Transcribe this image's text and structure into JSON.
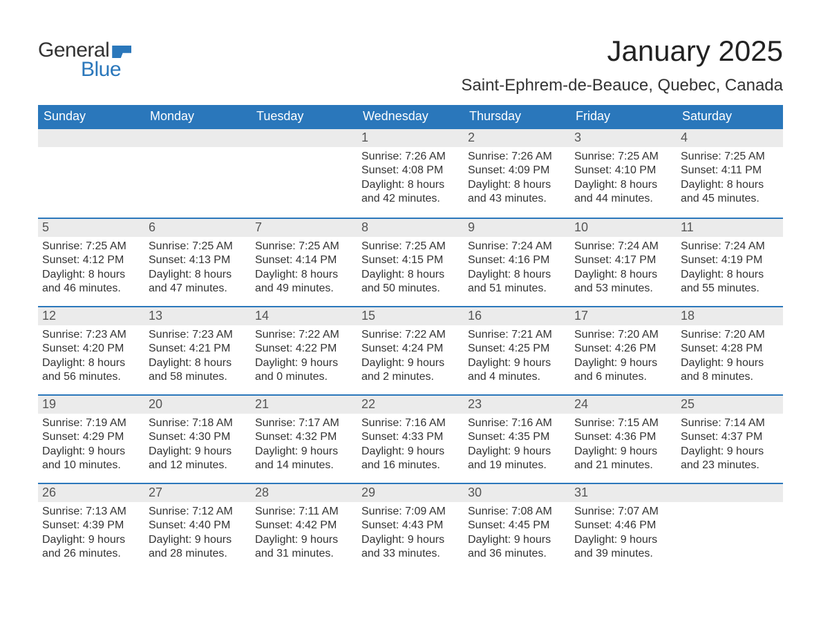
{
  "logo": {
    "general": "General",
    "blue": "Blue"
  },
  "title": "January 2025",
  "location": "Saint-Ephrem-de-Beauce, Quebec, Canada",
  "colors": {
    "header_bg": "#2a77bb",
    "header_text": "#ffffff",
    "daynum_bg": "#ebebeb",
    "daynum_text": "#555555",
    "body_text": "#333333",
    "row_border": "#2a77bb",
    "page_bg": "#ffffff"
  },
  "days_of_week": [
    "Sunday",
    "Monday",
    "Tuesday",
    "Wednesday",
    "Thursday",
    "Friday",
    "Saturday"
  ],
  "weeks": [
    [
      {
        "n": "",
        "sunrise": "",
        "sunset": "",
        "daylight": ""
      },
      {
        "n": "",
        "sunrise": "",
        "sunset": "",
        "daylight": ""
      },
      {
        "n": "",
        "sunrise": "",
        "sunset": "",
        "daylight": ""
      },
      {
        "n": "1",
        "sunrise": "Sunrise: 7:26 AM",
        "sunset": "Sunset: 4:08 PM",
        "daylight": "Daylight: 8 hours and 42 minutes."
      },
      {
        "n": "2",
        "sunrise": "Sunrise: 7:26 AM",
        "sunset": "Sunset: 4:09 PM",
        "daylight": "Daylight: 8 hours and 43 minutes."
      },
      {
        "n": "3",
        "sunrise": "Sunrise: 7:25 AM",
        "sunset": "Sunset: 4:10 PM",
        "daylight": "Daylight: 8 hours and 44 minutes."
      },
      {
        "n": "4",
        "sunrise": "Sunrise: 7:25 AM",
        "sunset": "Sunset: 4:11 PM",
        "daylight": "Daylight: 8 hours and 45 minutes."
      }
    ],
    [
      {
        "n": "5",
        "sunrise": "Sunrise: 7:25 AM",
        "sunset": "Sunset: 4:12 PM",
        "daylight": "Daylight: 8 hours and 46 minutes."
      },
      {
        "n": "6",
        "sunrise": "Sunrise: 7:25 AM",
        "sunset": "Sunset: 4:13 PM",
        "daylight": "Daylight: 8 hours and 47 minutes."
      },
      {
        "n": "7",
        "sunrise": "Sunrise: 7:25 AM",
        "sunset": "Sunset: 4:14 PM",
        "daylight": "Daylight: 8 hours and 49 minutes."
      },
      {
        "n": "8",
        "sunrise": "Sunrise: 7:25 AM",
        "sunset": "Sunset: 4:15 PM",
        "daylight": "Daylight: 8 hours and 50 minutes."
      },
      {
        "n": "9",
        "sunrise": "Sunrise: 7:24 AM",
        "sunset": "Sunset: 4:16 PM",
        "daylight": "Daylight: 8 hours and 51 minutes."
      },
      {
        "n": "10",
        "sunrise": "Sunrise: 7:24 AM",
        "sunset": "Sunset: 4:17 PM",
        "daylight": "Daylight: 8 hours and 53 minutes."
      },
      {
        "n": "11",
        "sunrise": "Sunrise: 7:24 AM",
        "sunset": "Sunset: 4:19 PM",
        "daylight": "Daylight: 8 hours and 55 minutes."
      }
    ],
    [
      {
        "n": "12",
        "sunrise": "Sunrise: 7:23 AM",
        "sunset": "Sunset: 4:20 PM",
        "daylight": "Daylight: 8 hours and 56 minutes."
      },
      {
        "n": "13",
        "sunrise": "Sunrise: 7:23 AM",
        "sunset": "Sunset: 4:21 PM",
        "daylight": "Daylight: 8 hours and 58 minutes."
      },
      {
        "n": "14",
        "sunrise": "Sunrise: 7:22 AM",
        "sunset": "Sunset: 4:22 PM",
        "daylight": "Daylight: 9 hours and 0 minutes."
      },
      {
        "n": "15",
        "sunrise": "Sunrise: 7:22 AM",
        "sunset": "Sunset: 4:24 PM",
        "daylight": "Daylight: 9 hours and 2 minutes."
      },
      {
        "n": "16",
        "sunrise": "Sunrise: 7:21 AM",
        "sunset": "Sunset: 4:25 PM",
        "daylight": "Daylight: 9 hours and 4 minutes."
      },
      {
        "n": "17",
        "sunrise": "Sunrise: 7:20 AM",
        "sunset": "Sunset: 4:26 PM",
        "daylight": "Daylight: 9 hours and 6 minutes."
      },
      {
        "n": "18",
        "sunrise": "Sunrise: 7:20 AM",
        "sunset": "Sunset: 4:28 PM",
        "daylight": "Daylight: 9 hours and 8 minutes."
      }
    ],
    [
      {
        "n": "19",
        "sunrise": "Sunrise: 7:19 AM",
        "sunset": "Sunset: 4:29 PM",
        "daylight": "Daylight: 9 hours and 10 minutes."
      },
      {
        "n": "20",
        "sunrise": "Sunrise: 7:18 AM",
        "sunset": "Sunset: 4:30 PM",
        "daylight": "Daylight: 9 hours and 12 minutes."
      },
      {
        "n": "21",
        "sunrise": "Sunrise: 7:17 AM",
        "sunset": "Sunset: 4:32 PM",
        "daylight": "Daylight: 9 hours and 14 minutes."
      },
      {
        "n": "22",
        "sunrise": "Sunrise: 7:16 AM",
        "sunset": "Sunset: 4:33 PM",
        "daylight": "Daylight: 9 hours and 16 minutes."
      },
      {
        "n": "23",
        "sunrise": "Sunrise: 7:16 AM",
        "sunset": "Sunset: 4:35 PM",
        "daylight": "Daylight: 9 hours and 19 minutes."
      },
      {
        "n": "24",
        "sunrise": "Sunrise: 7:15 AM",
        "sunset": "Sunset: 4:36 PM",
        "daylight": "Daylight: 9 hours and 21 minutes."
      },
      {
        "n": "25",
        "sunrise": "Sunrise: 7:14 AM",
        "sunset": "Sunset: 4:37 PM",
        "daylight": "Daylight: 9 hours and 23 minutes."
      }
    ],
    [
      {
        "n": "26",
        "sunrise": "Sunrise: 7:13 AM",
        "sunset": "Sunset: 4:39 PM",
        "daylight": "Daylight: 9 hours and 26 minutes."
      },
      {
        "n": "27",
        "sunrise": "Sunrise: 7:12 AM",
        "sunset": "Sunset: 4:40 PM",
        "daylight": "Daylight: 9 hours and 28 minutes."
      },
      {
        "n": "28",
        "sunrise": "Sunrise: 7:11 AM",
        "sunset": "Sunset: 4:42 PM",
        "daylight": "Daylight: 9 hours and 31 minutes."
      },
      {
        "n": "29",
        "sunrise": "Sunrise: 7:09 AM",
        "sunset": "Sunset: 4:43 PM",
        "daylight": "Daylight: 9 hours and 33 minutes."
      },
      {
        "n": "30",
        "sunrise": "Sunrise: 7:08 AM",
        "sunset": "Sunset: 4:45 PM",
        "daylight": "Daylight: 9 hours and 36 minutes."
      },
      {
        "n": "31",
        "sunrise": "Sunrise: 7:07 AM",
        "sunset": "Sunset: 4:46 PM",
        "daylight": "Daylight: 9 hours and 39 minutes."
      },
      {
        "n": "",
        "sunrise": "",
        "sunset": "",
        "daylight": ""
      }
    ]
  ]
}
